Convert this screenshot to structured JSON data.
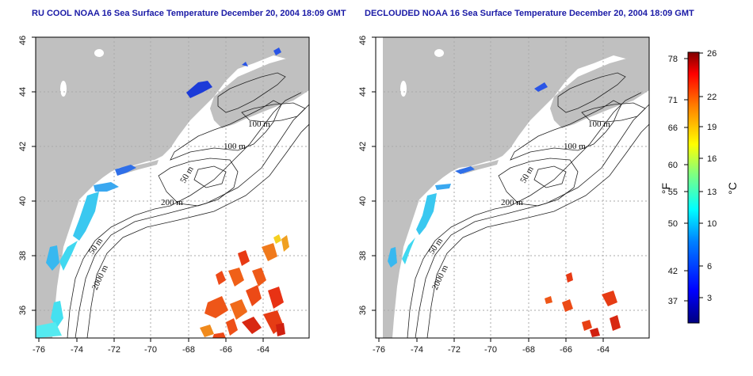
{
  "panels": [
    {
      "title": "RU COOL NOAA 16 Sea Surface Temperature December 20, 2004 18:09 GMT"
    },
    {
      "title": "DECLOUDED NOAA 16 Sea Surface Temperature December 20, 2004 18:09 GMT"
    }
  ],
  "axes": {
    "x_ticks": [
      "-76",
      "-74",
      "-72",
      "-70",
      "-68",
      "-66",
      "-64"
    ],
    "y_ticks": [
      "36",
      "38",
      "40",
      "42",
      "44",
      "46"
    ]
  },
  "contour_labels": {
    "c100a": "100 m",
    "c100b": "100 m",
    "c50a": "50 m",
    "c200": "200 m",
    "c50b": "50 m",
    "c2000": "2000 m"
  },
  "colorbar": {
    "fahrenheit_ticks": [
      "78",
      "71",
      "66",
      "60",
      "55",
      "50",
      "42",
      "37"
    ],
    "celsius_ticks": [
      "26",
      "22",
      "19",
      "16",
      "13",
      "10",
      "6",
      "3"
    ],
    "unit_f": "°F",
    "unit_c": "°C",
    "colors": [
      "#00007f",
      "#0000ff",
      "#0080ff",
      "#00ffff",
      "#80ff80",
      "#ffff00",
      "#ff8000",
      "#ff0000",
      "#7f0000"
    ]
  },
  "colors": {
    "land": "#c0c0c0",
    "ocean": "#ffffff",
    "contour": "#222222",
    "grid": "#aaaaaa"
  }
}
